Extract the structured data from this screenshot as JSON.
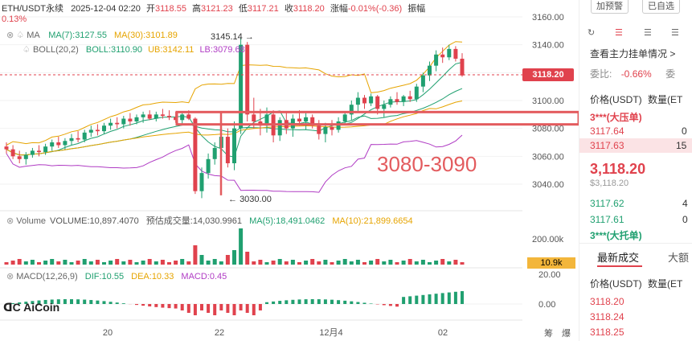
{
  "header": {
    "symbol": "ETH/USDT永续",
    "datetime": "2025-12-04 02:20",
    "open_label": "开",
    "open": "3118.55",
    "high_label": "高",
    "high": "3121.23",
    "low_label": "低",
    "low": "3117.21",
    "close_label": "收",
    "close": "3118.20",
    "change_label": "涨幅",
    "change": "-0.01%(-0.36)",
    "amplitude_label": "振幅",
    "amplitude": "0.13%"
  },
  "indicators": {
    "ma_label": "MA",
    "ma7": "MA(7):3127.55",
    "ma30": "MA(30):3101.89",
    "boll_label": "BOLL(20,2)",
    "boll": "BOLL:3110.90",
    "ub": "UB:3142.11",
    "lb": "LB:3079.68",
    "volume_label": "Volume",
    "volume": "VOLUME:10,897.4070",
    "est_volume": "预估成交量:14,030.9961",
    "vol_ma5": "MA(5):18,491.0462",
    "vol_ma10": "MA(10):21,899.6654",
    "macd_label": "MACD(12,26,9)",
    "dif": "DIF:10.55",
    "dea": "DEA:10.33",
    "macd": "MACD:0.45"
  },
  "annotations": {
    "high_marker": "3145.14",
    "low_marker": "3030.00",
    "band_text": "3080-3090",
    "current_price": "3118.20",
    "volume_tag": "10.9k"
  },
  "axis": {
    "price_ticks": [
      "3160.00",
      "3140.00",
      "3120.00",
      "3100.00",
      "3080.00",
      "3060.00",
      "3040.00"
    ],
    "volume_ticks": [
      "200.00k"
    ],
    "macd_ticks": [
      "20.00",
      "0.00"
    ],
    "time_ticks": [
      "20",
      "22",
      "12月4",
      "02"
    ],
    "corner_labels": [
      "筹",
      "爆"
    ]
  },
  "logo": {
    "text": "AiCoin"
  },
  "order_panel": {
    "add_alert": "加预警",
    "in_watchlist": "已自选",
    "view_orders": "查看主力挂单情况",
    "view_orders_arrow": ">",
    "ratio_label": "委比:",
    "ratio_value": "-0.66%",
    "ratio_extra": "委",
    "col_price": "价格(USDT)",
    "col_qty": "数量(ET",
    "ask_big": "3***(大压单)",
    "asks": [
      {
        "price": "3117.64",
        "qty": "0"
      },
      {
        "price": "3117.63",
        "qty": "15"
      }
    ],
    "last_price": "3,118.20",
    "last_price_usd": "$3,118.20",
    "bids": [
      {
        "price": "3117.62",
        "qty": "4"
      },
      {
        "price": "3117.61",
        "qty": "0"
      }
    ],
    "bid_big": "3***(大托单)",
    "tab_latest": "最新成交",
    "tab_big": "大额",
    "col_price2": "价格(USDT)",
    "col_qty2": "数量(ET",
    "trades": [
      "3118.20",
      "3118.24",
      "3118.25"
    ]
  },
  "chart_data": {
    "type": "candlestick",
    "ylim": [
      3020,
      3165
    ],
    "x_ticks": [
      "20",
      "22",
      "12月4",
      "02"
    ],
    "candles": [
      [
        3067,
        3070,
        3062,
        3065
      ],
      [
        3065,
        3068,
        3058,
        3060
      ],
      [
        3060,
        3064,
        3055,
        3058
      ],
      [
        3058,
        3063,
        3054,
        3061
      ],
      [
        3061,
        3066,
        3059,
        3064
      ],
      [
        3064,
        3068,
        3060,
        3063
      ],
      [
        3063,
        3069,
        3061,
        3067
      ],
      [
        3067,
        3072,
        3064,
        3070
      ],
      [
        3070,
        3074,
        3066,
        3068
      ],
      [
        3068,
        3073,
        3065,
        3071
      ],
      [
        3071,
        3076,
        3068,
        3073
      ],
      [
        3073,
        3078,
        3070,
        3072
      ],
      [
        3072,
        3079,
        3070,
        3077
      ],
      [
        3077,
        3082,
        3074,
        3079
      ],
      [
        3079,
        3083,
        3075,
        3078
      ],
      [
        3078,
        3084,
        3076,
        3082
      ],
      [
        3082,
        3087,
        3079,
        3084
      ],
      [
        3084,
        3088,
        3080,
        3083
      ],
      [
        3083,
        3089,
        3080,
        3087
      ],
      [
        3087,
        3091,
        3082,
        3085
      ],
      [
        3085,
        3090,
        3083,
        3088
      ],
      [
        3088,
        3092,
        3084,
        3090
      ],
      [
        3090,
        3093,
        3086,
        3087
      ],
      [
        3087,
        3092,
        3085,
        3090
      ],
      [
        3090,
        3094,
        3087,
        3089
      ],
      [
        3089,
        3093,
        3086,
        3088
      ],
      [
        3088,
        3092,
        3084,
        3086
      ],
      [
        3086,
        3091,
        3083,
        3090
      ],
      [
        3090,
        3093,
        3086,
        3087
      ],
      [
        3087,
        3088,
        3033,
        3035
      ],
      [
        3035,
        3052,
        3030,
        3048
      ],
      [
        3048,
        3062,
        3044,
        3058
      ],
      [
        3058,
        3070,
        3054,
        3066
      ],
      [
        3066,
        3078,
        3060,
        3074
      ],
      [
        3074,
        3080,
        3052,
        3055
      ],
      [
        3055,
        3085,
        3050,
        3080
      ],
      [
        3080,
        3145,
        3076,
        3140
      ],
      [
        3140,
        3142,
        3085,
        3090
      ],
      [
        3090,
        3102,
        3080,
        3085
      ],
      [
        3085,
        3094,
        3075,
        3082
      ],
      [
        3082,
        3095,
        3077,
        3090
      ],
      [
        3090,
        3093,
        3070,
        3075
      ],
      [
        3075,
        3088,
        3071,
        3086
      ],
      [
        3086,
        3092,
        3076,
        3080
      ],
      [
        3080,
        3090,
        3074,
        3087
      ],
      [
        3087,
        3093,
        3082,
        3085
      ],
      [
        3085,
        3091,
        3079,
        3088
      ],
      [
        3088,
        3090,
        3080,
        3082
      ],
      [
        3082,
        3086,
        3072,
        3076
      ],
      [
        3076,
        3084,
        3070,
        3081
      ],
      [
        3081,
        3086,
        3075,
        3079
      ],
      [
        3079,
        3088,
        3077,
        3085
      ],
      [
        3085,
        3092,
        3083,
        3090
      ],
      [
        3090,
        3100,
        3086,
        3097
      ],
      [
        3097,
        3106,
        3092,
        3102
      ],
      [
        3102,
        3104,
        3094,
        3098
      ],
      [
        3098,
        3105,
        3096,
        3103
      ],
      [
        3103,
        3104,
        3090,
        3094
      ],
      [
        3094,
        3100,
        3088,
        3097
      ],
      [
        3097,
        3103,
        3095,
        3101
      ],
      [
        3101,
        3106,
        3097,
        3099
      ],
      [
        3099,
        3104,
        3096,
        3103
      ],
      [
        3103,
        3107,
        3099,
        3101
      ],
      [
        3101,
        3112,
        3099,
        3110
      ],
      [
        3110,
        3120,
        3106,
        3118
      ],
      [
        3118,
        3128,
        3114,
        3125
      ],
      [
        3125,
        3136,
        3121,
        3133
      ],
      [
        3133,
        3138,
        3127,
        3131
      ],
      [
        3131,
        3140,
        3129,
        3137
      ],
      [
        3137,
        3139,
        3128,
        3130
      ],
      [
        3130,
        3134,
        3117,
        3118
      ]
    ],
    "resistance_band": [
      3080,
      3090
    ]
  }
}
